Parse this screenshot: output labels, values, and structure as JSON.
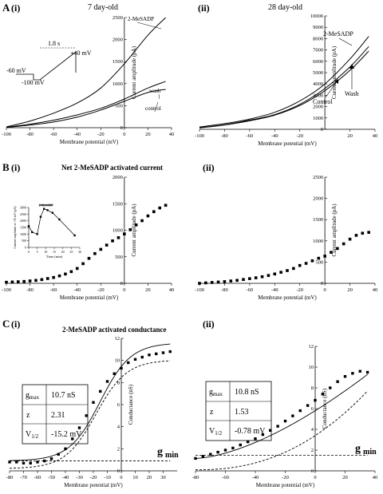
{
  "panel_A": {
    "label": "A",
    "i": {
      "num": "(i)",
      "age": "7 day-old"
    },
    "ii": {
      "num": "(ii)",
      "age": "28 day-old"
    },
    "protocol": {
      "duration": "1.8 s",
      "v_hold": "-60 mV",
      "v_start": "-100 mV",
      "v_end": "+40 mV"
    }
  },
  "panel_B": {
    "label": "B",
    "i": {
      "num": "(i)",
      "title": "Net 2-MeSADP activated current"
    },
    "ii": {
      "num": "(ii)"
    },
    "inset": {
      "bar_label": "2-MeSADP",
      "xlabel": "Time (min)",
      "ylabel": "Current amplitude at +35 mV (pA)",
      "xticks": [
        "0",
        "5",
        "10",
        "15",
        "20",
        "25",
        "30"
      ],
      "yticks": [
        "0",
        "500",
        "1000",
        "1500",
        "2000",
        "2500",
        "3000"
      ]
    }
  },
  "panel_C": {
    "label": "C",
    "i": {
      "num": "(i)",
      "title": "2-MeSADP activated conductance",
      "fit": {
        "gmax_label": "g",
        "gmax_sub": "max",
        "gmax_value": "10.7 nS",
        "z_label": "z",
        "z_value": "2.31",
        "v_label": "V",
        "v_sub": "1/2",
        "v_value": "-15.2 mV"
      },
      "gmin_label": "g",
      "gmin_sub": "min"
    },
    "ii": {
      "num": "(ii)",
      "fit": {
        "gmax_label": "g",
        "gmax_sub": "max",
        "gmax_value": "10.8 nS",
        "z_label": "z",
        "z_value": "1.53",
        "v_label": "V",
        "v_sub": "1/2",
        "v_value": "-0.78 mV"
      },
      "gmin_label": "g",
      "gmin_sub": "min"
    }
  },
  "chart_data": [
    {
      "id": "Ai",
      "type": "line",
      "xlabel": "Membrane potential (mV)",
      "ylabel": "Current amplitude (pA)",
      "xlim": [
        -100,
        40
      ],
      "ylim": [
        0,
        2500
      ],
      "xticks": [
        -100,
        -80,
        -60,
        -40,
        -20,
        0,
        20,
        40
      ],
      "yticks": [
        0,
        500,
        1000,
        1500,
        2000,
        2500
      ],
      "series": [
        {
          "name": "2-MeSADP",
          "x": [
            -100,
            -80,
            -60,
            -40,
            -20,
            0,
            20,
            35
          ],
          "y": [
            20,
            150,
            330,
            560,
            900,
            1450,
            2100,
            2500
          ]
        },
        {
          "name": "wash",
          "x": [
            -100,
            -80,
            -60,
            -40,
            -20,
            0,
            20,
            35
          ],
          "y": [
            10,
            80,
            170,
            290,
            440,
            650,
            900,
            1050
          ]
        },
        {
          "name": "control",
          "x": [
            -100,
            -80,
            -60,
            -40,
            -20,
            0,
            20,
            35
          ],
          "y": [
            5,
            60,
            130,
            240,
            400,
            600,
            800,
            870
          ]
        }
      ]
    },
    {
      "id": "Aii",
      "type": "line",
      "xlabel": "Membrane potential (mV)",
      "ylabel": "Current amplitude (pA)",
      "xlim": [
        -100,
        40
      ],
      "ylim": [
        0,
        10000
      ],
      "xticks": [
        -100,
        -80,
        -60,
        -40,
        -20,
        20,
        40
      ],
      "yticks": [
        0,
        1000,
        2000,
        3000,
        4000,
        5000,
        6000,
        7000,
        8000,
        9000,
        10000
      ],
      "series": [
        {
          "name": "2-MeSADP",
          "x": [
            -100,
            -80,
            -60,
            -40,
            -20,
            0,
            20,
            35
          ],
          "y": [
            200,
            500,
            900,
            1500,
            2500,
            4000,
            6200,
            8200
          ]
        },
        {
          "name": "Wash",
          "x": [
            -100,
            -80,
            -60,
            -40,
            -20,
            0,
            20,
            35
          ],
          "y": [
            150,
            400,
            800,
            1300,
            2200,
            3600,
            5500,
            7300
          ]
        },
        {
          "name": "Control",
          "x": [
            -100,
            -80,
            -60,
            -40,
            -20,
            0,
            20,
            35
          ],
          "y": [
            120,
            380,
            750,
            1250,
            2100,
            3400,
            5200,
            6900
          ]
        }
      ]
    },
    {
      "id": "Bi",
      "type": "scatter",
      "xlabel": "Membrane potential (mV)",
      "ylabel": "Current amplitude (pA)",
      "xlim": [
        -100,
        40
      ],
      "ylim": [
        0,
        2000
      ],
      "xticks": [
        -100,
        -80,
        -60,
        -40,
        -20,
        0,
        20,
        40
      ],
      "yticks": [
        0,
        500,
        1000,
        1500,
        2000
      ],
      "series": [
        {
          "name": "",
          "x": [
            -100,
            -95,
            -90,
            -85,
            -80,
            -75,
            -70,
            -65,
            -60,
            -55,
            -50,
            -45,
            -40,
            -35,
            -30,
            -25,
            -20,
            -15,
            -10,
            -5,
            0,
            5,
            10,
            15,
            20,
            25,
            30,
            35
          ],
          "y": [
            20,
            25,
            30,
            35,
            45,
            55,
            70,
            90,
            110,
            140,
            175,
            220,
            280,
            370,
            470,
            560,
            640,
            720,
            800,
            860,
            930,
            1010,
            1100,
            1180,
            1270,
            1350,
            1420,
            1470
          ]
        }
      ]
    },
    {
      "id": "Bi-inset",
      "type": "line",
      "xlabel": "Time (min)",
      "ylabel": "Current amplitude at +35 mV (pA)",
      "xlim": [
        0,
        30
      ],
      "ylim": [
        0,
        3000
      ],
      "series": [
        {
          "name": "",
          "x": [
            0,
            2,
            5,
            7,
            9,
            11,
            14,
            18,
            27
          ],
          "y": [
            1600,
            1150,
            1000,
            2300,
            2900,
            2800,
            2600,
            2100,
            900
          ]
        }
      ]
    },
    {
      "id": "Bii",
      "type": "scatter",
      "xlabel": "Membrane potential (mV)",
      "ylabel": "Current amplitude (pA)",
      "xlim": [
        -100,
        40
      ],
      "ylim": [
        0,
        2500
      ],
      "xticks": [
        -100,
        -80,
        -60,
        -40,
        -20,
        0,
        20,
        40
      ],
      "yticks": [
        0,
        500,
        1000,
        1500,
        2000,
        2500
      ],
      "series": [
        {
          "name": "",
          "x": [
            -100,
            -95,
            -90,
            -85,
            -80,
            -75,
            -70,
            -65,
            -60,
            -55,
            -50,
            -45,
            -40,
            -35,
            -30,
            -25,
            -20,
            -15,
            -10,
            -5,
            0,
            5,
            10,
            15,
            20,
            25,
            30,
            35
          ],
          "y": [
            0,
            10,
            20,
            30,
            40,
            55,
            70,
            90,
            110,
            130,
            155,
            185,
            220,
            260,
            300,
            350,
            420,
            470,
            530,
            590,
            640,
            730,
            820,
            930,
            1040,
            1130,
            1180,
            1200
          ]
        }
      ]
    },
    {
      "id": "Ci",
      "type": "scatter",
      "xlabel": "Membrane potential (mV)",
      "ylabel": "Conductance (nS)",
      "xlim": [
        -80,
        40
      ],
      "ylim": [
        0,
        12
      ],
      "xticks": [
        -80,
        -70,
        -60,
        -50,
        -40,
        -30,
        -20,
        -10,
        0,
        10,
        20,
        30
      ],
      "yticks": [
        0,
        2,
        4,
        6,
        8,
        10,
        12
      ],
      "series": [
        {
          "name": "",
          "x": [
            -80,
            -75,
            -70,
            -65,
            -60,
            -55,
            -50,
            -45,
            -40,
            -35,
            -30,
            -25,
            -20,
            -15,
            -10,
            -5,
            0,
            5,
            10,
            15,
            20,
            25,
            30,
            35
          ],
          "y": [
            0.8,
            0.8,
            0.7,
            0.7,
            0.8,
            0.9,
            1.1,
            1.5,
            2.0,
            2.9,
            3.9,
            5.0,
            6.2,
            7.2,
            8.1,
            8.8,
            9.3,
            9.8,
            10.1,
            10.3,
            10.5,
            10.6,
            10.7,
            10.8
          ]
        }
      ],
      "gmin": 0.9
    },
    {
      "id": "Cii",
      "type": "scatter",
      "xlabel": "Membrane potential (mV)",
      "ylabel": "Conductance (nS)",
      "xlim": [
        -80,
        40
      ],
      "ylim": [
        0,
        12
      ],
      "xticks": [
        -80,
        -60,
        -40,
        -20,
        0,
        20,
        40
      ],
      "yticks": [
        0,
        2,
        4,
        6,
        8,
        10,
        12
      ],
      "series": [
        {
          "name": "",
          "x": [
            -80,
            -75,
            -70,
            -65,
            -60,
            -55,
            -50,
            -45,
            -40,
            -35,
            -30,
            -25,
            -20,
            -15,
            -10,
            -5,
            0,
            5,
            10,
            15,
            20,
            25,
            30,
            35
          ],
          "y": [
            1.2,
            1.4,
            1.6,
            1.8,
            2.0,
            2.2,
            2.5,
            2.8,
            3.1,
            3.5,
            3.9,
            4.3,
            4.8,
            5.3,
            5.8,
            6.3,
            6.8,
            7.4,
            8.0,
            8.6,
            9.1,
            9.4,
            9.6,
            9.5
          ]
        }
      ],
      "gmin": 1.5
    }
  ]
}
